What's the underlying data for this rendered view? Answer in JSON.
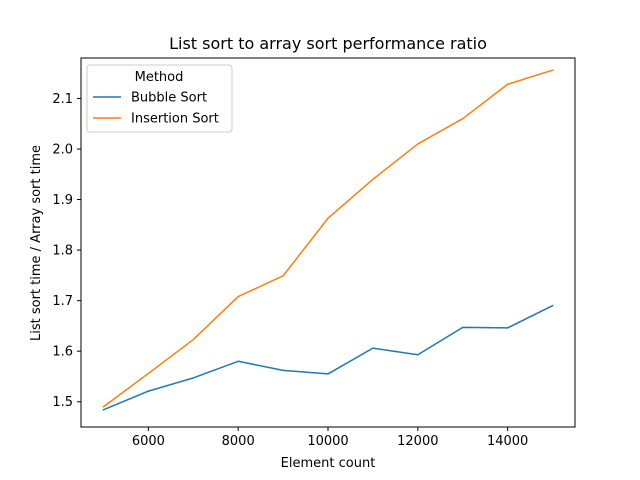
{
  "chart_data": {
    "type": "line",
    "title": "List sort to array sort performance ratio",
    "xlabel": "Element count",
    "ylabel": "List sort time / Array sort time",
    "x": [
      5000,
      6000,
      7000,
      8000,
      9000,
      10000,
      11000,
      12000,
      13000,
      14000,
      15000
    ],
    "xlim": [
      4500,
      15500
    ],
    "ylim": [
      1.45,
      2.18
    ],
    "xticks": [
      6000,
      8000,
      10000,
      12000,
      14000
    ],
    "yticks": [
      1.5,
      1.6,
      1.7,
      1.8,
      1.9,
      2.0,
      2.1
    ],
    "xtick_labels": [
      "6000",
      "8000",
      "10000",
      "12000",
      "14000"
    ],
    "ytick_labels": [
      "1.5",
      "1.6",
      "1.7",
      "1.8",
      "1.9",
      "2.0",
      "2.1"
    ],
    "grid": false,
    "legend": {
      "title": "Method",
      "position": "top-left"
    },
    "series": [
      {
        "name": "Bubble Sort",
        "color": "#1f77b4",
        "values": [
          1.484,
          1.521,
          1.547,
          1.58,
          1.562,
          1.555,
          1.606,
          1.593,
          1.647,
          1.646,
          1.69
        ]
      },
      {
        "name": "Insertion Sort",
        "color": "#ff7f0e",
        "values": [
          1.49,
          1.556,
          1.623,
          1.708,
          1.749,
          1.863,
          1.94,
          2.01,
          2.06,
          2.128,
          2.156
        ]
      }
    ]
  }
}
